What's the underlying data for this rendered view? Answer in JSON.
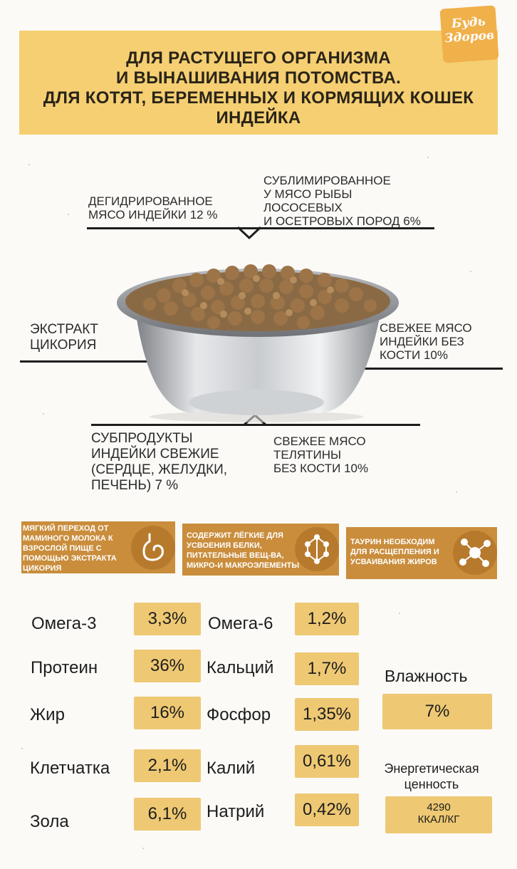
{
  "logo": {
    "line1": "Будь",
    "line2": "Здоров"
  },
  "header": {
    "lines": [
      "ДЛЯ РАСТУЩЕГО ОРГАНИЗМА",
      "И ВЫНАШИВАНИЯ ПОТОМСТВА.",
      "ДЛЯ КОТЯТ, БЕРЕМЕННЫХ И КОРМЯЩИХ КОШЕК",
      "ИНДЕЙКА"
    ]
  },
  "ingredients": {
    "dehydrated": [
      "ДЕГИДРИРОВАННОЕ",
      "МЯСО ИНДЕЙКИ 12 %"
    ],
    "freeze_dried": [
      "СУБЛИМИРОВАННОЕ",
      "У МЯСО РЫБЫ",
      "ЛОСОСЕВЫХ",
      "И ОСЕТРОВЫХ ПОРОД 6%"
    ],
    "chicory": [
      "ЭКСТРАКТ",
      "ЦИКОРИЯ"
    ],
    "fresh_turkey": [
      "СВЕЖЕЕ МЯСО",
      "ИНДЕЙКИ БЕЗ",
      "КОСТИ 10%"
    ],
    "offal": [
      "СУБПРОДУКТЫ",
      "ИНДЕЙКИ СВЕЖИЕ",
      "(СЕРДЦЕ, ЖЕЛУДКИ,",
      "ПЕЧЕНЬ) 7 %"
    ],
    "veal": [
      "СВЕЖЕЕ МЯСО",
      "ТЕЛЯТИНЫ",
      "БЕЗ КОСТИ 10%"
    ]
  },
  "benefits": [
    {
      "lines": [
        "МЯГКИЙ ПЕРЕХОД ОТ",
        "МАМИНОГО МОЛОКА К",
        "ВЗРОСЛОЙ ПИЩЕ С",
        "ПОМОЩЬЮ ЭКСТРАКТА",
        "ЦИКОРИЯ"
      ],
      "icon": "stomach-icon"
    },
    {
      "lines": [
        "СОДЕРЖИТ ЛЁГКИЕ ДЛЯ",
        "УСВОЕНИЯ БЕЛКИ,",
        "ПИТАТЕЛЬНЫЕ ВЕЩ-ВА,",
        "МИКРО-И МАКРОЭЛЕМЕНТЫ"
      ],
      "icon": "molecule-icon"
    },
    {
      "lines": [
        "ТАУРИН НЕОБХОДИМ",
        "ДЛЯ РАСЩЕПЛЕНИЯ И",
        "УСВАИВАНИЯ ЖИРОВ"
      ],
      "icon": "molecule-icon"
    }
  ],
  "nutrients_left": [
    {
      "name": "Омега-3",
      "value": "3,3%"
    },
    {
      "name": "Протеин",
      "value": "36%"
    },
    {
      "name": "Жир",
      "value": "16%"
    },
    {
      "name": "Клетчатка",
      "value": "2,1%"
    },
    {
      "name": "Зола",
      "value": "6,1%"
    }
  ],
  "nutrients_right": [
    {
      "name": "Омега-6",
      "value": "1,2%"
    },
    {
      "name": "Кальций",
      "value": "1,7%"
    },
    {
      "name": "Фосфор",
      "value": "1,35%"
    },
    {
      "name": "Калий",
      "value": "0,61%"
    },
    {
      "name": "Натрий",
      "value": "0,42%"
    }
  ],
  "moisture": {
    "label": "Влажность",
    "value": "7%"
  },
  "energy": {
    "label_1": "Энергетическая",
    "label_2": "ценность",
    "value_1": "4290",
    "value_2": "ККАЛ/КГ"
  },
  "colors": {
    "header_bg": "#f5cf72",
    "benefit_bg": "#c98d3c",
    "value_bg": "#eec873"
  }
}
